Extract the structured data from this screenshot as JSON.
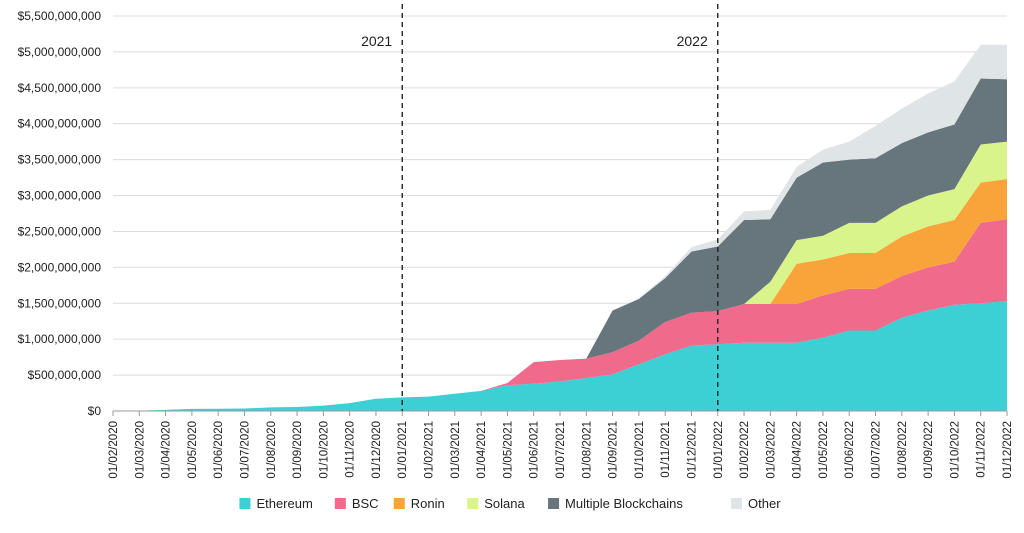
{
  "chart_data": {
    "type": "area",
    "stacked": true,
    "x": [
      "01/02/2020",
      "01/03/2020",
      "01/04/2020",
      "01/05/2020",
      "01/06/2020",
      "01/07/2020",
      "01/08/2020",
      "01/09/2020",
      "01/10/2020",
      "01/11/2020",
      "01/12/2020",
      "01/01/2021",
      "01/02/2021",
      "01/03/2021",
      "01/04/2021",
      "01/05/2021",
      "01/06/2021",
      "01/07/2021",
      "01/08/2021",
      "01/09/2021",
      "01/10/2021",
      "01/11/2021",
      "01/12/2021",
      "01/01/2022",
      "01/02/2022",
      "01/03/2022",
      "01/04/2022",
      "01/05/2022",
      "01/06/2022",
      "01/07/2022",
      "01/08/2022",
      "01/09/2022",
      "01/10/2022",
      "01/11/2022",
      "01/12/2022"
    ],
    "x_ticks": [
      "01/02/2020",
      "01/03/2020",
      "01/04/2020",
      "01/05/2020",
      "01/06/2020",
      "01/07/2020",
      "01/08/2020",
      "01/09/2020",
      "01/10/2020",
      "01/11/2020",
      "01/12/2020",
      "01/01/2021",
      "01/02/2021",
      "01/03/2021",
      "01/04/2021",
      "01/05/2021",
      "01/06/2021",
      "01/07/2021",
      "01/08/2021",
      "01/09/2021",
      "01/10/2021",
      "01/11/2021",
      "01/12/2021",
      "01/01/2022",
      "01/02/2022",
      "01/03/2022",
      "01/04/2022",
      "01/05/2022",
      "01/06/2022",
      "01/07/2022",
      "01/08/2022",
      "01/09/2022",
      "01/10/2022",
      "01/11/2022",
      "01/12/2022"
    ],
    "y_ticks": [
      "$0",
      "$500,000,000",
      "$1,000,000,000",
      "$1,500,000,000",
      "$2,000,000,000",
      "$2,500,000,000",
      "$3,000,000,000",
      "$3,500,000,000",
      "$4,000,000,000",
      "$4,500,000,000",
      "$5,000,000,000",
      "$5,500,000,000"
    ],
    "ylim": [
      0,
      5500000000
    ],
    "grid": "horizontal",
    "legend_position": "bottom",
    "annotations": [
      {
        "text": "2021",
        "x": "01/01/2021"
      },
      {
        "text": "2022",
        "x": "01/01/2022"
      }
    ],
    "series": [
      {
        "name": "Ethereum",
        "color": "#3ccfd4",
        "values": [
          2000000,
          5000000,
          15000000,
          30000000,
          32000000,
          35000000,
          50000000,
          55000000,
          75000000,
          110000000,
          170000000,
          190000000,
          200000000,
          240000000,
          280000000,
          360000000,
          380000000,
          410000000,
          460000000,
          510000000,
          650000000,
          790000000,
          910000000,
          930000000,
          950000000,
          950000000,
          950000000,
          1020000000,
          1120000000,
          1120000000,
          1300000000,
          1400000000,
          1480000000,
          1500000000,
          1530000000
        ]
      },
      {
        "name": "BSC",
        "color": "#ef6a8b",
        "values": [
          0,
          0,
          0,
          0,
          0,
          0,
          0,
          0,
          0,
          0,
          0,
          0,
          0,
          0,
          0,
          30000000,
          300000000,
          300000000,
          270000000,
          310000000,
          330000000,
          450000000,
          460000000,
          460000000,
          540000000,
          540000000,
          540000000,
          590000000,
          580000000,
          580000000,
          580000000,
          600000000,
          600000000,
          1120000000,
          1140000000
        ]
      },
      {
        "name": "Ronin",
        "color": "#f9a43a",
        "values": [
          0,
          0,
          0,
          0,
          0,
          0,
          0,
          0,
          0,
          0,
          0,
          0,
          0,
          0,
          0,
          0,
          0,
          0,
          0,
          0,
          0,
          0,
          0,
          0,
          0,
          0,
          560000000,
          500000000,
          500000000,
          500000000,
          550000000,
          570000000,
          580000000,
          560000000,
          560000000
        ]
      },
      {
        "name": "Solana",
        "color": "#d9f48b",
        "values": [
          0,
          0,
          0,
          0,
          0,
          0,
          0,
          0,
          0,
          0,
          0,
          0,
          0,
          0,
          0,
          0,
          0,
          0,
          0,
          0,
          0,
          0,
          0,
          0,
          0,
          310000000,
          330000000,
          330000000,
          420000000,
          420000000,
          420000000,
          430000000,
          430000000,
          530000000,
          520000000
        ]
      },
      {
        "name": "Multiple Blockchains",
        "color": "#67757d",
        "values": [
          0,
          0,
          0,
          0,
          0,
          0,
          0,
          0,
          0,
          0,
          0,
          0,
          0,
          0,
          0,
          0,
          0,
          0,
          0,
          580000000,
          580000000,
          610000000,
          850000000,
          900000000,
          1170000000,
          870000000,
          870000000,
          1020000000,
          880000000,
          900000000,
          880000000,
          880000000,
          900000000,
          920000000,
          870000000
        ]
      },
      {
        "name": "Other",
        "color": "#dfe4e6",
        "values": [
          0,
          0,
          0,
          0,
          0,
          0,
          0,
          0,
          0,
          0,
          0,
          0,
          0,
          0,
          0,
          0,
          0,
          0,
          0,
          0,
          10000000,
          30000000,
          60000000,
          100000000,
          120000000,
          130000000,
          150000000,
          180000000,
          250000000,
          450000000,
          480000000,
          540000000,
          600000000,
          470000000,
          480000000
        ]
      }
    ]
  }
}
